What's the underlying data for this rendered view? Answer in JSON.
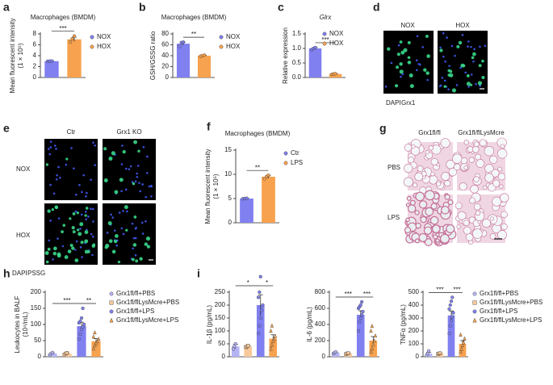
{
  "chart_data": [
    {
      "type": "bar",
      "panel": "a",
      "title": "Macrophages (BMDM)",
      "ylabel": [
        "Mean fluorescent intensity",
        "(1 × 10⁵)"
      ],
      "ylim": [
        0,
        8
      ],
      "yticks": [
        0,
        2,
        4,
        6,
        8
      ],
      "legend": true,
      "significance": [
        "***"
      ],
      "series": [
        {
          "name": "NOX",
          "color": "#8080f0",
          "marker": "circle",
          "values": [
            3.0
          ],
          "errors": [
            0.03
          ],
          "points": [
            2.97,
            3.0,
            3.02
          ]
        },
        {
          "name": "HOX",
          "color": "#f7a24e",
          "marker": "circle",
          "values": [
            7.0
          ],
          "errors": [
            0.4
          ],
          "points": [
            6.5,
            7.1,
            7.6
          ]
        }
      ]
    },
    {
      "type": "bar",
      "panel": "b",
      "title": "Macrophages (BMDM)",
      "ylabel": [
        "GSH/GSSG ratio"
      ],
      "ylim": [
        0,
        80
      ],
      "yticks": [
        0,
        20,
        40,
        60,
        80
      ],
      "legend": true,
      "significance": [
        "**"
      ],
      "series": [
        {
          "name": "NOX",
          "color": "#8080f0",
          "marker": "circle",
          "values": [
            62
          ],
          "errors": [
            3
          ],
          "points": [
            57,
            64,
            65
          ]
        },
        {
          "name": "HOX",
          "color": "#f7a24e",
          "marker": "circle",
          "values": [
            40
          ],
          "errors": [
            1
          ],
          "points": [
            39,
            40,
            41
          ]
        }
      ]
    },
    {
      "type": "bar",
      "panel": "c",
      "title": "Glrx",
      "ylabel": [
        "Relative expression"
      ],
      "ylim": [
        0,
        1.5
      ],
      "yticks": [
        {
          "value": 0,
          "label": "0.0"
        },
        {
          "value": 0.5,
          "label": "0.5"
        },
        {
          "value": 1,
          "label": "1.0"
        },
        {
          "value": 1.5,
          "label": "1.5"
        }
      ],
      "legend": true,
      "significance": [
        "***"
      ],
      "series": [
        {
          "name": "NOX",
          "color": "#8080f0",
          "marker": "circle",
          "values": [
            1.0
          ],
          "errors": [
            0.03
          ],
          "points": [
            0.96,
            1.0,
            1.03
          ]
        },
        {
          "name": "HOX",
          "color": "#f7a24e",
          "marker": "circle",
          "values": [
            0.12
          ],
          "errors": [
            0.01
          ],
          "points": [
            0.11,
            0.12,
            0.13
          ]
        }
      ]
    },
    {
      "type": "bar",
      "panel": "f",
      "title": "Macrophages (BMDM)",
      "ylabel": [
        "Mean fluorescent intensity",
        "(1 × 10⁵)"
      ],
      "ylim": [
        0,
        15
      ],
      "yticks": [
        0,
        5,
        10,
        15
      ],
      "legend": true,
      "significance": [
        "**"
      ],
      "series": [
        {
          "name": "Ctr",
          "color": "#8080f0",
          "marker": "circle",
          "values": [
            5.0
          ],
          "errors": [
            0.05
          ],
          "points": [
            4.95,
            5.0,
            5.05
          ]
        },
        {
          "name": "LPS",
          "color": "#f7a24e",
          "marker": "circle",
          "values": [
            9.5
          ],
          "errors": [
            0.3
          ],
          "points": [
            9.1,
            9.5,
            9.8
          ]
        }
      ]
    },
    {
      "type": "bar",
      "panel": "h",
      "ylabel": [
        "Leukocytes in BALF",
        "(10⁴/mL)"
      ],
      "ylim": [
        0,
        200
      ],
      "yticks": [
        0,
        50,
        100,
        150,
        200
      ],
      "legend": true,
      "significance": [
        "***",
        "**"
      ],
      "series": [
        {
          "name": "Grx1fl/fl+PBS",
          "color": "#b4b4f5",
          "marker": "circle",
          "values": [
            10
          ],
          "errors": [
            2
          ],
          "points": [
            6,
            10,
            13
          ]
        },
        {
          "name": "Grx1fl/flLysMcre+PBS",
          "color": "#f9c99a",
          "marker": "square",
          "values": [
            10
          ],
          "errors": [
            2
          ],
          "points": [
            7,
            10,
            12
          ]
        },
        {
          "name": "Grx1fl/fl+LPS",
          "color": "#8080f0",
          "marker": "circle",
          "values": [
            95
          ],
          "errors": [
            12
          ],
          "points": [
            55,
            70,
            85,
            92,
            100,
            105,
            110,
            120,
            150
          ]
        },
        {
          "name": "Grx1fl/flLysMcre+LPS",
          "color": "#f7a24e",
          "marker": "triangle",
          "values": [
            48
          ],
          "errors": [
            8
          ],
          "points": [
            25,
            35,
            42,
            48,
            55,
            62,
            75
          ]
        }
      ]
    },
    {
      "type": "bar",
      "panel": "i",
      "ylabel": [
        "IL-1β (pg/mL)"
      ],
      "ylim": [
        0,
        250
      ],
      "yticks": [
        0,
        50,
        100,
        150,
        200,
        250
      ],
      "significance": [
        "*",
        "*"
      ],
      "series": [
        {
          "name": "Grx1fl/fl+PBS",
          "color": "#b4b4f5",
          "marker": "circle",
          "values": [
            40
          ],
          "errors": [
            8
          ],
          "points": [
            30,
            40,
            50
          ]
        },
        {
          "name": "Grx1fl/flLysMcre+PBS",
          "color": "#f9c99a",
          "marker": "square",
          "values": [
            40
          ],
          "errors": [
            3
          ],
          "points": [
            37,
            40,
            43
          ]
        },
        {
          "name": "Grx1fl/fl+LPS",
          "color": "#8080f0",
          "marker": "circle",
          "values": [
            200
          ],
          "errors": [
            40
          ],
          "points": [
            90,
            120,
            150,
            180,
            200,
            230,
            250,
            310
          ]
        },
        {
          "name": "Grx1fl/flLysMcre+LPS",
          "color": "#f7a24e",
          "marker": "triangle",
          "values": [
            70
          ],
          "errors": [
            15
          ],
          "points": [
            30,
            45,
            60,
            70,
            80,
            100,
            120
          ]
        }
      ]
    },
    {
      "type": "bar",
      "ylabel": [
        "IL-6 (pg/mL)"
      ],
      "ylim": [
        0,
        800
      ],
      "yticks": [
        0,
        200,
        400,
        600,
        800
      ],
      "significance": [
        "***",
        "***"
      ],
      "series": [
        {
          "name": "Grx1fl/fl+PBS",
          "color": "#b4b4f5",
          "marker": "circle",
          "values": [
            50
          ],
          "errors": [
            8
          ],
          "points": [
            40,
            50,
            60
          ]
        },
        {
          "name": "Grx1fl/flLysMcre+PBS",
          "color": "#f9c99a",
          "marker": "square",
          "values": [
            40
          ],
          "errors": [
            5
          ],
          "points": [
            35,
            40,
            45
          ]
        },
        {
          "name": "Grx1fl/fl+LPS",
          "color": "#8080f0",
          "marker": "circle",
          "values": [
            520
          ],
          "errors": [
            50
          ],
          "points": [
            320,
            430,
            480,
            520,
            560,
            600,
            620,
            640,
            680
          ]
        },
        {
          "name": "Grx1fl/flLysMcre+LPS",
          "color": "#f7a24e",
          "marker": "triangle",
          "values": [
            200
          ],
          "errors": [
            50
          ],
          "points": [
            60,
            100,
            150,
            200,
            260,
            320,
            380
          ]
        }
      ]
    },
    {
      "type": "bar",
      "ylabel": [
        "TNFα (pg/mL)"
      ],
      "ylim": [
        0,
        500
      ],
      "yticks": [
        0,
        100,
        200,
        300,
        400,
        500
      ],
      "legend": true,
      "significance": [
        "***",
        "***"
      ],
      "series": [
        {
          "name": "Grx1fl/fl+PBS",
          "color": "#b4b4f5",
          "marker": "circle",
          "values": [
            25
          ],
          "errors": [
            10
          ],
          "points": [
            10,
            25,
            45
          ]
        },
        {
          "name": "Grx1fl/flLysMcre+PBS",
          "color": "#f9c99a",
          "marker": "square",
          "values": [
            25
          ],
          "errors": [
            3
          ],
          "points": [
            22,
            25,
            28
          ]
        },
        {
          "name": "Grx1fl/fl+LPS",
          "color": "#8080f0",
          "marker": "circle",
          "values": [
            320
          ],
          "errors": [
            35
          ],
          "points": [
            180,
            240,
            280,
            310,
            340,
            370,
            400,
            430,
            460
          ]
        },
        {
          "name": "Grx1fl/flLysMcre+LPS",
          "color": "#f7a24e",
          "marker": "triangle",
          "values": [
            100
          ],
          "errors": [
            25
          ],
          "points": [
            40,
            60,
            90,
            110,
            140,
            170
          ]
        }
      ]
    }
  ],
  "images": {
    "d": {
      "panel": "d",
      "columns": [
        "NOX",
        "HOX"
      ],
      "stains": [
        "DAPI",
        "Grx1"
      ]
    },
    "e": {
      "panel": "e",
      "columns": [
        "Ctr",
        "Grx1 KO"
      ],
      "rows": [
        "NOX",
        "HOX"
      ],
      "stains": [
        "DAPI",
        "PSSG"
      ]
    },
    "g": {
      "panel": "g",
      "columns": [
        "Grx1fl/fl",
        "Grx1fl/flLysMcre"
      ],
      "rows": [
        "PBS",
        "LPS"
      ]
    }
  }
}
